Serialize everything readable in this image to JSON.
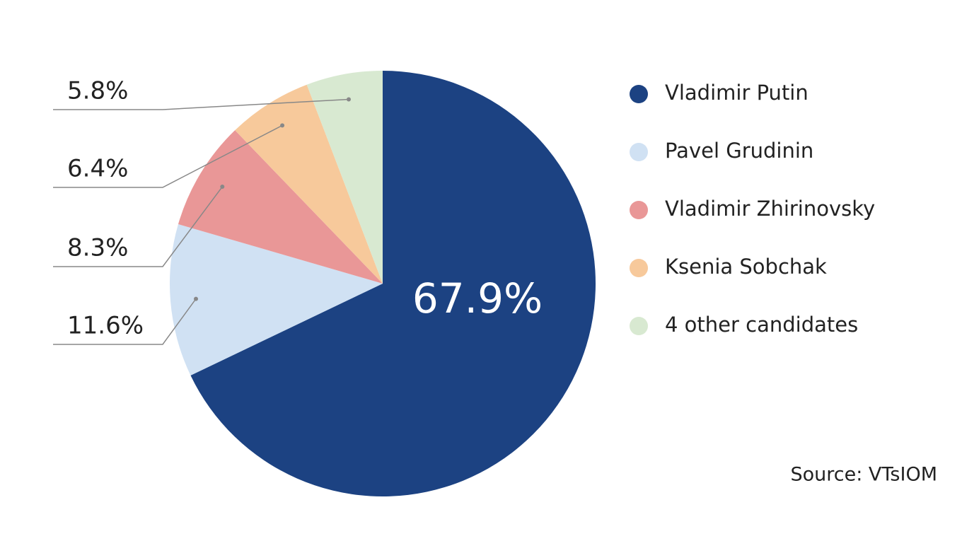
{
  "chart_data": {
    "type": "pie",
    "categories": [
      "Vladimir Putin",
      "Pavel Grudinin",
      "Vladimir Zhirinovsky",
      "Ksenia Sobchak",
      "4 other candidates"
    ],
    "values": [
      67.9,
      11.6,
      8.3,
      6.4,
      5.8
    ],
    "value_labels": [
      "67.9%",
      "11.6%",
      "8.3%",
      "6.4%",
      "5.8%"
    ],
    "colors": [
      "#1c4282",
      "#d0e1f3",
      "#e99797",
      "#f7c99b",
      "#d8e9d1"
    ],
    "source": "Source: VTsIOM"
  }
}
